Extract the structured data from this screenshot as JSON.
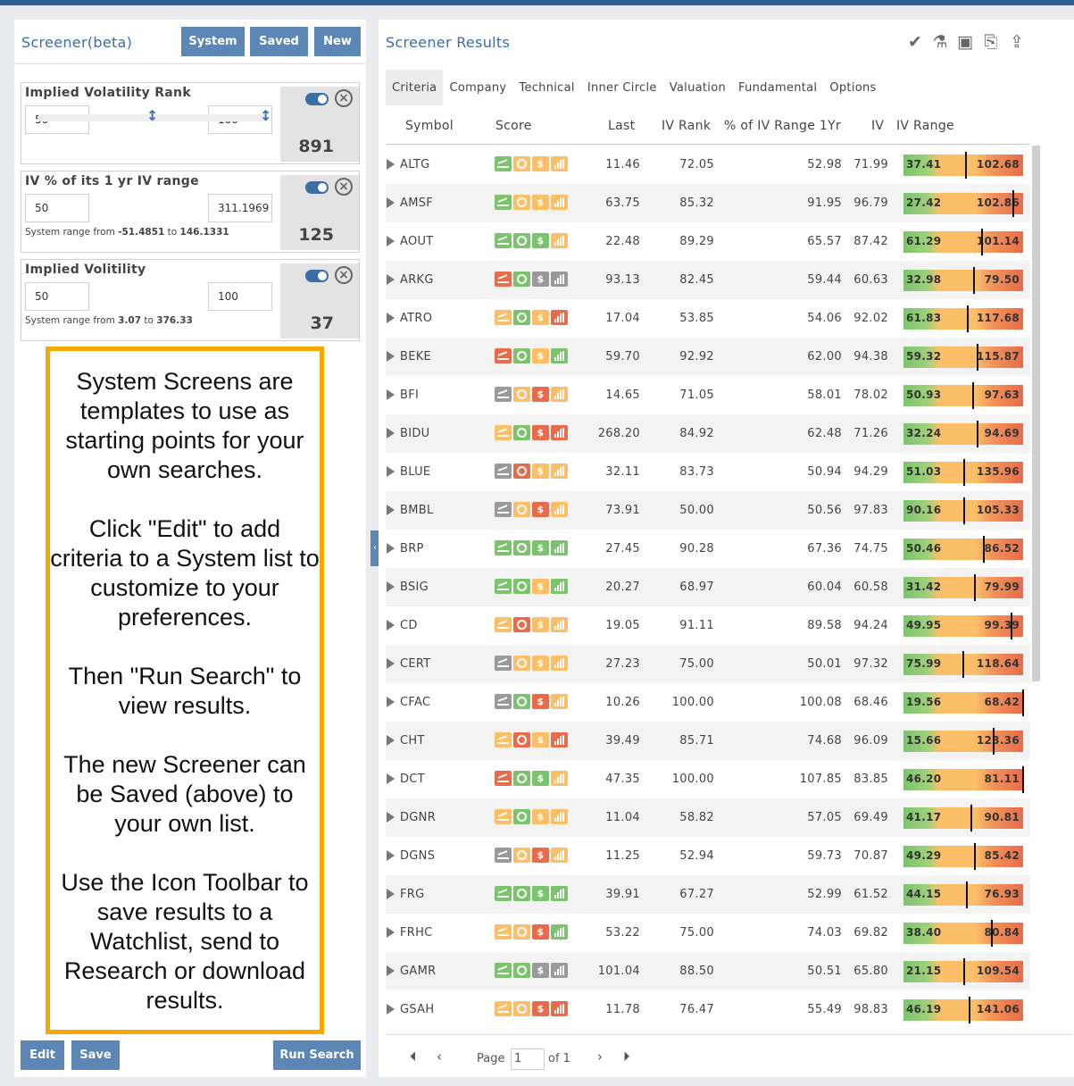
{
  "left": {
    "title": "Screener(beta)",
    "buttons": {
      "system": "System",
      "saved": "Saved",
      "new": "New"
    },
    "criteria": [
      {
        "title": "Implied Volatility Rank",
        "min": "50",
        "max": "100",
        "count": "891",
        "range_text": ""
      },
      {
        "title": "IV % of its 1 yr IV range",
        "min": "50",
        "max": "311.1969",
        "count": "125",
        "range_prefix": "System range from ",
        "range_lo": "-51.4851",
        "range_mid": " to ",
        "range_hi": "146.1331"
      },
      {
        "title": "Implied Volitility",
        "min": "50",
        "max": "100",
        "count": "37",
        "range_prefix": "System range from ",
        "range_lo": "3.07",
        "range_mid": " to ",
        "range_hi": "376.33"
      }
    ],
    "callout": [
      "System Screens are templates to use as starting points for your own searches.",
      "Click \"Edit\" to add criteria to a System list to customize to your preferences.",
      "Then \"Run Search\" to view results.",
      "The new Screener can be Saved (above) to your own list.",
      "Use the Icon Toolbar to save results to a Watchlist, send to Research or download results."
    ],
    "footer": {
      "edit": "Edit",
      "save": "Save",
      "run": "Run Search"
    }
  },
  "right": {
    "title": "Screener Results",
    "toolbar_icons": [
      "check-circle-icon",
      "flask-icon",
      "folder-add-icon",
      "file-export-icon",
      "upload-icon"
    ],
    "tabs": [
      "Criteria",
      "Company",
      "Technical",
      "Inner Circle",
      "Valuation",
      "Fundamental",
      "Options"
    ],
    "columns": {
      "symbol": "Symbol",
      "score": "Score",
      "last": "Last",
      "ivrank": "IV Rank",
      "pct": "% of IV Range 1Yr",
      "iv": "IV",
      "ivrange": "IV Range"
    },
    "rows": [
      {
        "symbol": "ALTG",
        "score": [
          "g",
          "o",
          "o",
          "o"
        ],
        "last": "11.46",
        "ivrank": "72.05",
        "pct": "52.98",
        "iv": "71.99",
        "lo": "37.41",
        "hi": "102.68",
        "mark": 0.52
      },
      {
        "symbol": "AMSF",
        "score": [
          "g",
          "o",
          "o",
          "o"
        ],
        "last": "63.75",
        "ivrank": "85.32",
        "pct": "91.95",
        "iv": "96.79",
        "lo": "27.42",
        "hi": "102.86",
        "mark": 0.92
      },
      {
        "symbol": "AOUT",
        "score": [
          "g",
          "g",
          "g",
          "o"
        ],
        "last": "22.48",
        "ivrank": "89.29",
        "pct": "65.57",
        "iv": "87.42",
        "lo": "61.29",
        "hi": "101.14",
        "mark": 0.66
      },
      {
        "symbol": "ARKG",
        "score": [
          "r",
          "g",
          "gr",
          "gr"
        ],
        "last": "93.13",
        "ivrank": "82.45",
        "pct": "59.44",
        "iv": "60.63",
        "lo": "32.98",
        "hi": "79.50",
        "mark": 0.59
      },
      {
        "symbol": "ATRO",
        "score": [
          "o",
          "g",
          "o",
          "r"
        ],
        "last": "17.04",
        "ivrank": "53.85",
        "pct": "54.06",
        "iv": "92.02",
        "lo": "61.83",
        "hi": "117.68",
        "mark": 0.54
      },
      {
        "symbol": "BEKE",
        "score": [
          "r",
          "g",
          "o",
          "g"
        ],
        "last": "59.70",
        "ivrank": "92.92",
        "pct": "62.00",
        "iv": "94.38",
        "lo": "59.32",
        "hi": "115.87",
        "mark": 0.62
      },
      {
        "symbol": "BFI",
        "score": [
          "gr",
          "o",
          "r",
          "o"
        ],
        "last": "14.65",
        "ivrank": "71.05",
        "pct": "58.01",
        "iv": "78.02",
        "lo": "50.93",
        "hi": "97.63",
        "mark": 0.58
      },
      {
        "symbol": "BIDU",
        "score": [
          "o",
          "g",
          "r",
          "r"
        ],
        "last": "268.20",
        "ivrank": "84.92",
        "pct": "62.48",
        "iv": "71.26",
        "lo": "32.24",
        "hi": "94.69",
        "mark": 0.62
      },
      {
        "symbol": "BLUE",
        "score": [
          "gr",
          "r",
          "o",
          "o"
        ],
        "last": "32.11",
        "ivrank": "83.73",
        "pct": "50.94",
        "iv": "94.29",
        "lo": "51.03",
        "hi": "135.96",
        "mark": 0.51
      },
      {
        "symbol": "BMBL",
        "score": [
          "gr",
          "o",
          "r",
          "o"
        ],
        "last": "73.91",
        "ivrank": "50.00",
        "pct": "50.56",
        "iv": "97.83",
        "lo": "90.16",
        "hi": "105.33",
        "mark": 0.51
      },
      {
        "symbol": "BRP",
        "score": [
          "g",
          "g",
          "g",
          "g"
        ],
        "last": "27.45",
        "ivrank": "90.28",
        "pct": "67.36",
        "iv": "74.75",
        "lo": "50.46",
        "hi": "86.52",
        "mark": 0.67
      },
      {
        "symbol": "BSIG",
        "score": [
          "g",
          "g",
          "o",
          "g"
        ],
        "last": "20.27",
        "ivrank": "68.97",
        "pct": "60.04",
        "iv": "60.58",
        "lo": "31.42",
        "hi": "79.99",
        "mark": 0.6
      },
      {
        "symbol": "CD",
        "score": [
          "o",
          "r",
          "o",
          "o"
        ],
        "last": "19.05",
        "ivrank": "91.11",
        "pct": "89.58",
        "iv": "94.24",
        "lo": "49.95",
        "hi": "99.39",
        "mark": 0.9
      },
      {
        "symbol": "CERT",
        "score": [
          "gr",
          "o",
          "o",
          "o"
        ],
        "last": "27.23",
        "ivrank": "75.00",
        "pct": "50.01",
        "iv": "97.32",
        "lo": "75.99",
        "hi": "118.64",
        "mark": 0.5
      },
      {
        "symbol": "CFAC",
        "score": [
          "gr",
          "g",
          "r",
          "o"
        ],
        "last": "10.26",
        "ivrank": "100.00",
        "pct": "100.08",
        "iv": "68.46",
        "lo": "19.56",
        "hi": "68.42",
        "mark": 1.0
      },
      {
        "symbol": "CHT",
        "score": [
          "o",
          "r",
          "o",
          "r"
        ],
        "last": "39.49",
        "ivrank": "85.71",
        "pct": "74.68",
        "iv": "96.09",
        "lo": "15.66",
        "hi": "123.36",
        "mark": 0.75
      },
      {
        "symbol": "DCT",
        "score": [
          "r",
          "g",
          "g",
          "o"
        ],
        "last": "47.35",
        "ivrank": "100.00",
        "pct": "107.85",
        "iv": "83.85",
        "lo": "46.20",
        "hi": "81.11",
        "mark": 1.0
      },
      {
        "symbol": "DGNR",
        "score": [
          "o",
          "g",
          "o",
          "o"
        ],
        "last": "11.04",
        "ivrank": "58.82",
        "pct": "57.05",
        "iv": "69.49",
        "lo": "41.17",
        "hi": "90.81",
        "mark": 0.57
      },
      {
        "symbol": "DGNS",
        "score": [
          "gr",
          "o",
          "r",
          "o"
        ],
        "last": "11.25",
        "ivrank": "52.94",
        "pct": "59.73",
        "iv": "70.87",
        "lo": "49.29",
        "hi": "85.42",
        "mark": 0.6
      },
      {
        "symbol": "FRG",
        "score": [
          "g",
          "g",
          "g",
          "g"
        ],
        "last": "39.91",
        "ivrank": "67.27",
        "pct": "52.99",
        "iv": "61.52",
        "lo": "44.15",
        "hi": "76.93",
        "mark": 0.53
      },
      {
        "symbol": "FRHC",
        "score": [
          "o",
          "o",
          "r",
          "g"
        ],
        "last": "53.22",
        "ivrank": "75.00",
        "pct": "74.03",
        "iv": "69.82",
        "lo": "38.40",
        "hi": "80.84",
        "mark": 0.74
      },
      {
        "symbol": "GAMR",
        "score": [
          "g",
          "g",
          "gr",
          "gr"
        ],
        "last": "101.04",
        "ivrank": "88.50",
        "pct": "50.51",
        "iv": "65.80",
        "lo": "21.15",
        "hi": "109.54",
        "mark": 0.51
      },
      {
        "symbol": "GSAH",
        "score": [
          "o",
          "o",
          "r",
          "r"
        ],
        "last": "11.78",
        "ivrank": "76.47",
        "pct": "55.49",
        "iv": "98.83",
        "lo": "46.19",
        "hi": "141.06",
        "mark": 0.55
      }
    ],
    "pager": {
      "page_label": "Page",
      "page_value": "1",
      "of_label": "of 1"
    }
  },
  "colors": {
    "accent": "#5b86b5",
    "title": "#3a6ea5",
    "green": "#7cc36e",
    "orange": "#fcbf68",
    "red": "#e86c4b",
    "gray": "#9a9a9a",
    "callout_border": "#f4a800"
  }
}
